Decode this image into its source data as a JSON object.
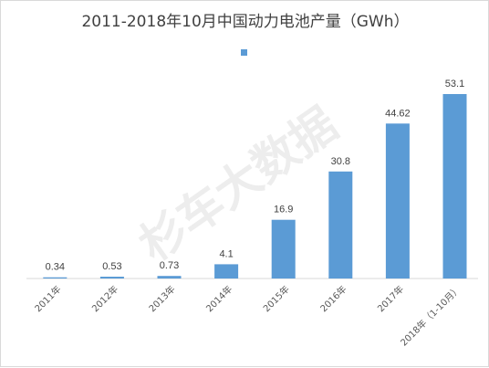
{
  "chart_data": {
    "type": "bar",
    "title": "2011-2018年10月中国动力电池产量（GWh）",
    "categories": [
      "2011年",
      "2012年",
      "2013年",
      "2014年",
      "2015年",
      "2016年",
      "2017年",
      "2018年（1-10月）"
    ],
    "values": [
      0.34,
      0.53,
      0.73,
      4.1,
      16.9,
      30.8,
      44.62,
      53.1
    ],
    "data_labels": [
      "0.34",
      "0.53",
      "0.73",
      "4.1",
      "16.9",
      "30.8",
      "44.62",
      "53.1"
    ],
    "ylim": [
      0,
      53.1
    ],
    "grid": false,
    "legend": "top-center",
    "bar_color": "#5b9bd5"
  },
  "watermark": "杉车大数据"
}
